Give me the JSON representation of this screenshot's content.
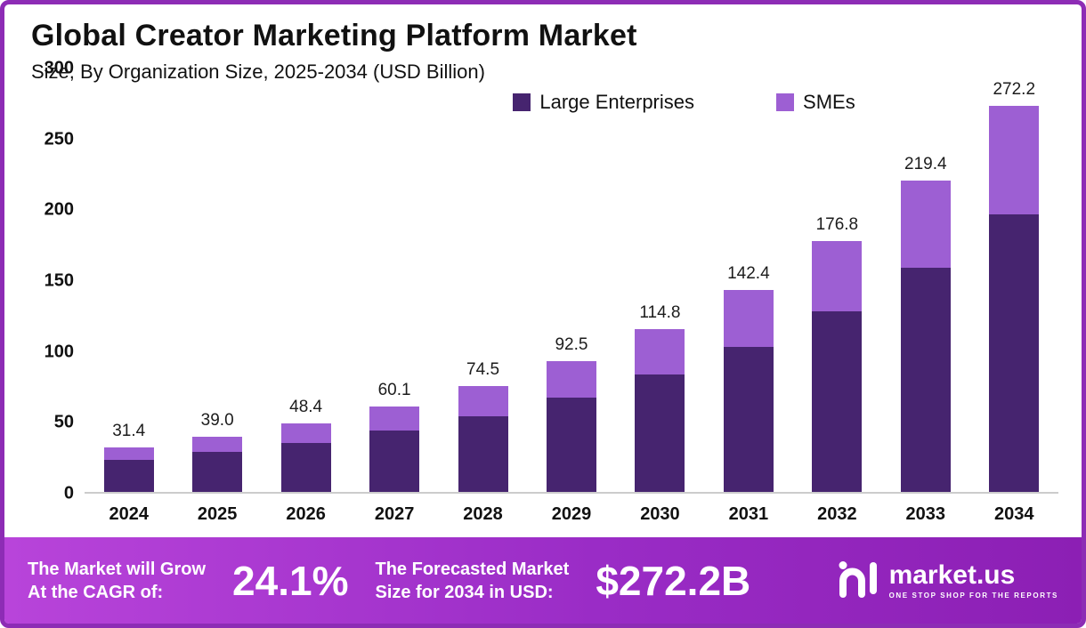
{
  "header": {
    "title": "Global Creator Marketing Platform Market",
    "subtitle": "Size, By Organization Size, 2025-2034 (USD Billion)"
  },
  "chart_data": {
    "type": "bar",
    "stacked": true,
    "title": "Global Creator Marketing Platform Market Size, By Organization Size, 2025-2034 (USD Billion)",
    "categories": [
      "2024",
      "2025",
      "2026",
      "2027",
      "2028",
      "2029",
      "2030",
      "2031",
      "2032",
      "2033",
      "2034"
    ],
    "series": [
      {
        "name": "Large Enterprises",
        "color": "#46246f",
        "values": [
          22.6,
          28.1,
          34.8,
          43.3,
          53.6,
          66.6,
          82.7,
          102.5,
          127.3,
          158.0,
          196.0
        ]
      },
      {
        "name": "SMEs",
        "color": "#9d5fd3",
        "values": [
          8.8,
          10.9,
          13.6,
          16.8,
          20.9,
          25.9,
          32.1,
          39.9,
          49.5,
          61.4,
          76.2
        ]
      }
    ],
    "totals": [
      "31.4",
      "39.0",
      "48.4",
      "60.1",
      "74.5",
      "92.5",
      "114.8",
      "142.4",
      "176.8",
      "219.4",
      "272.2"
    ],
    "xlabel": "",
    "ylabel": "",
    "ylim": [
      0,
      300
    ],
    "yticks": [
      0,
      50,
      100,
      150,
      200,
      250,
      300
    ],
    "grid": false,
    "legend_position": "top-right"
  },
  "banner": {
    "cagr_label_line1": "The Market will Grow",
    "cagr_label_line2": "At the CAGR of:",
    "cagr_value": "24.1%",
    "forecast_label_line1": "The Forecasted Market",
    "forecast_label_line2": "Size for 2034 in USD:",
    "forecast_value": "$272.2B",
    "logo_text": "market.us",
    "logo_tagline": "ONE STOP SHOP FOR THE REPORTS"
  },
  "colors": {
    "large_enterprises": "#46246f",
    "smes": "#9d5fd3",
    "frame_border": "#8d2cb5",
    "banner_gradient_start": "#b844da",
    "banner_gradient_end": "#8c1fb4"
  }
}
